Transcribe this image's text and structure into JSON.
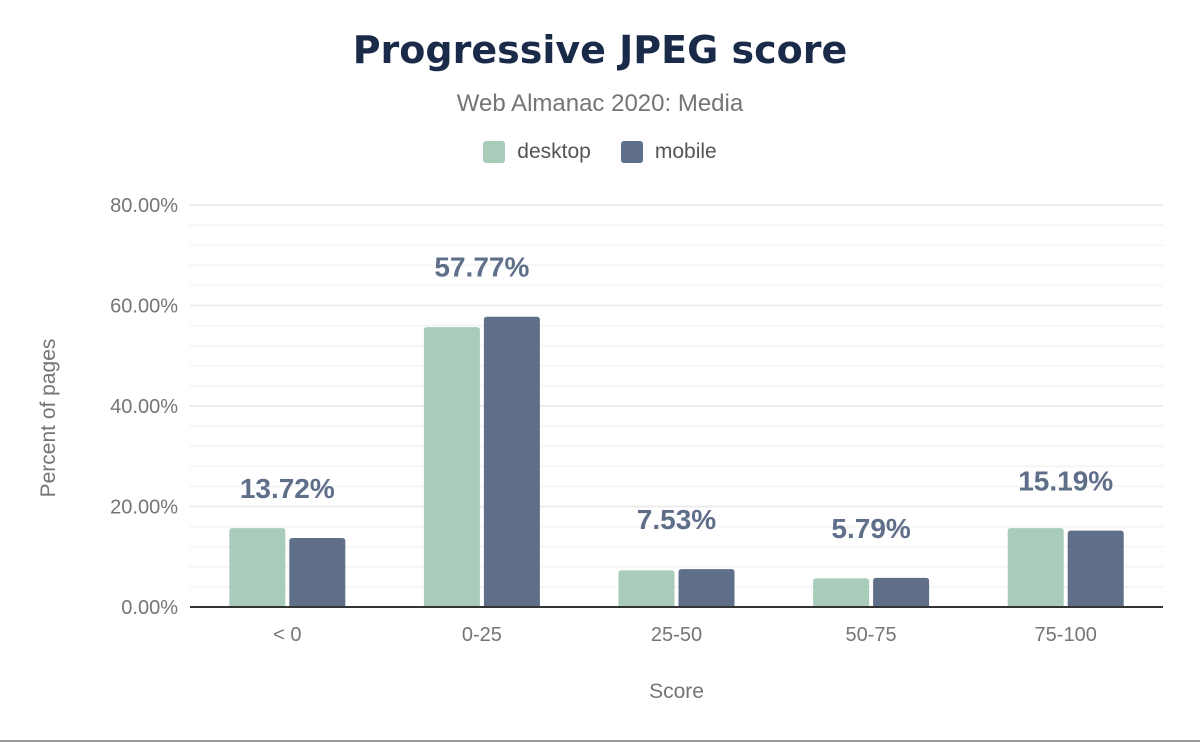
{
  "chart_data": {
    "type": "bar",
    "title": "Progressive JPEG score",
    "subtitle": "Web Almanac 2020: Media",
    "xlabel": "Score",
    "ylabel": "Percent of pages",
    "categories": [
      "< 0",
      "0-25",
      "25-50",
      "50-75",
      "75-100"
    ],
    "series": [
      {
        "name": "desktop",
        "color": "#a8cbba",
        "values": [
          15.7,
          55.7,
          7.3,
          5.7,
          15.7
        ]
      },
      {
        "name": "mobile",
        "color": "#5f6f89",
        "values": [
          13.72,
          57.77,
          7.53,
          5.79,
          15.19
        ]
      }
    ],
    "data_labels": [
      "13.72%",
      "57.77%",
      "7.53%",
      "5.79%",
      "15.19%"
    ],
    "yticks": [
      "0.00%",
      "20.00%",
      "40.00%",
      "60.00%",
      "80.00%"
    ],
    "ylim": [
      0,
      80
    ],
    "grid": true,
    "legend": "top-center"
  }
}
